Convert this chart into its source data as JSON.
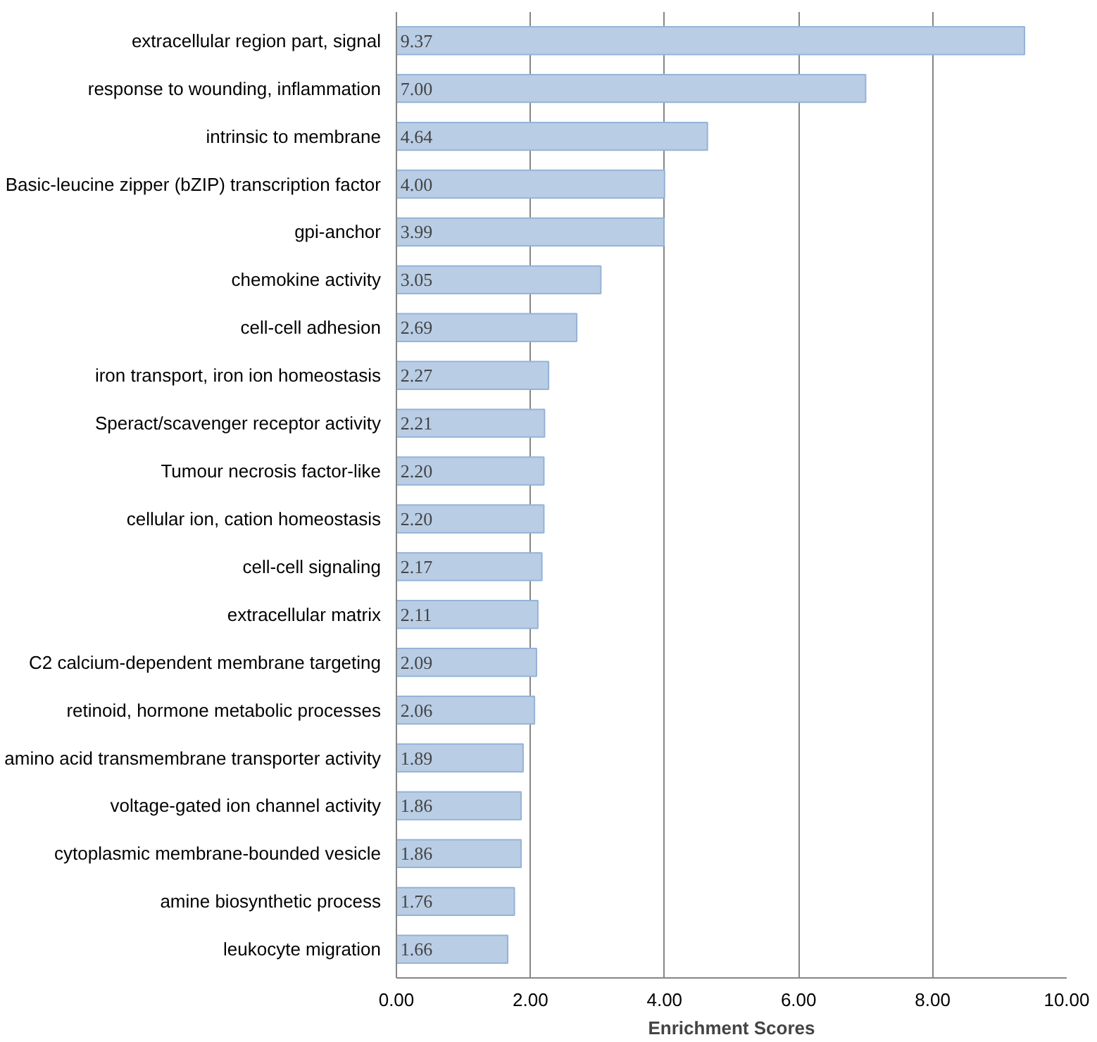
{
  "chart_data": {
    "type": "bar",
    "orientation": "horizontal",
    "xlabel": "Enrichment Scores",
    "categories": [
      "extracellular region part, signal",
      "response to wounding, inflammation",
      "intrinsic to membrane",
      "Basic-leucine zipper (bZIP) transcription factor",
      "gpi-anchor",
      "chemokine activity",
      "cell-cell adhesion",
      "iron transport, iron ion homeostasis",
      "Speract/scavenger receptor activity",
      "Tumour necrosis factor-like",
      "cellular ion, cation homeostasis",
      "cell-cell signaling",
      "extracellular matrix",
      "C2 calcium-dependent membrane targeting",
      "retinoid, hormone metabolic processes",
      "amino acid transmembrane transporter activity",
      "voltage-gated ion channel activity",
      "cytoplasmic membrane-bounded vesicle",
      "amine biosynthetic process",
      "leukocyte migration"
    ],
    "values": [
      9.37,
      7.0,
      4.64,
      4.0,
      3.99,
      3.05,
      2.69,
      2.27,
      2.21,
      2.2,
      2.2,
      2.17,
      2.11,
      2.09,
      2.06,
      1.89,
      1.86,
      1.86,
      1.76,
      1.66
    ],
    "value_labels": [
      "9.37",
      "7.00",
      "4.64",
      "4.00",
      "3.99",
      "3.05",
      "2.69",
      "2.27",
      "2.21",
      "2.20",
      "2.20",
      "2.17",
      "2.11",
      "2.09",
      "2.06",
      "1.89",
      "1.86",
      "1.86",
      "1.76",
      "1.66"
    ],
    "color": "#b9cde5",
    "xlim": [
      0,
      10
    ],
    "xticks": [
      {
        "value": 0,
        "label": "0.00"
      },
      {
        "value": 2,
        "label": "2.00"
      },
      {
        "value": 4,
        "label": "4.00"
      },
      {
        "value": 6,
        "label": "6.00"
      },
      {
        "value": 8,
        "label": "8.00"
      },
      {
        "value": 10,
        "label": "10.00"
      }
    ],
    "grid": "x"
  }
}
